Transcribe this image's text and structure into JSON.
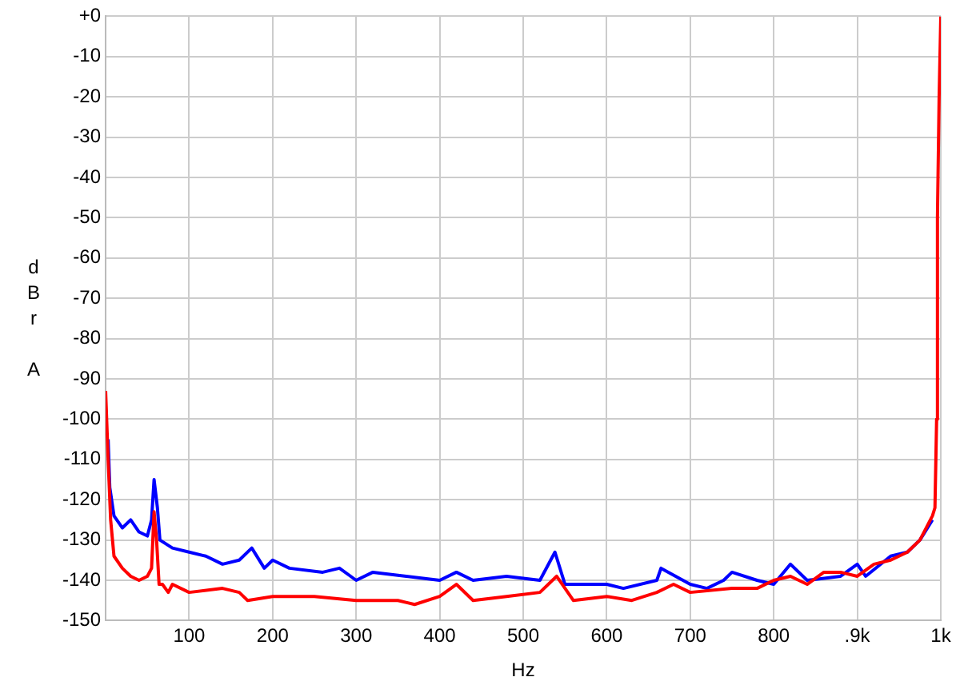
{
  "chart_data": {
    "type": "line",
    "xlabel": "Hz",
    "ylabel": "dBr A",
    "xlim": [
      0,
      1000
    ],
    "xticks": [
      100,
      200,
      300,
      400,
      500,
      600,
      700,
      800,
      {
        "value": 900,
        "label": ".9k"
      },
      {
        "value": 1000,
        "label": "1k"
      }
    ],
    "ylim": [
      -150,
      0
    ],
    "yticks": [
      {
        "value": 0,
        "label": "+0"
      },
      -10,
      -20,
      -30,
      -40,
      -50,
      -60,
      -70,
      -80,
      -90,
      -100,
      -110,
      -120,
      -130,
      -140,
      -150
    ],
    "grid": true,
    "legend": false,
    "marker": "none",
    "line_style": "solid",
    "series": [
      {
        "color": "#0000ff",
        "x": [
          3,
          5,
          10,
          20,
          30,
          40,
          50,
          55,
          58,
          62,
          65,
          80,
          100,
          120,
          140,
          160,
          175,
          190,
          200,
          220,
          260,
          280,
          300,
          320,
          360,
          400,
          420,
          440,
          480,
          520,
          538,
          550,
          600,
          620,
          660,
          665,
          700,
          720,
          740,
          750,
          780,
          800,
          820,
          840,
          880,
          900,
          910,
          940,
          960,
          975,
          990
        ],
        "values": [
          -105,
          -117,
          -124,
          -127,
          -125,
          -128,
          -129,
          -125,
          -115,
          -122,
          -130,
          -132,
          -133,
          -134,
          -136,
          -135,
          -132,
          -137,
          -135,
          -137,
          -138,
          -137,
          -140,
          -138,
          -139,
          -140,
          -138,
          -140,
          -139,
          -140,
          -133,
          -141,
          -141,
          -142,
          -140,
          -137,
          -141,
          -142,
          -140,
          -138,
          -140,
          -141,
          -136,
          -140,
          -139,
          -136,
          -139,
          -134,
          -133,
          -130,
          -125
        ]
      },
      {
        "color": "#ff0000",
        "x": [
          0,
          3,
          6,
          10,
          20,
          30,
          40,
          50,
          55,
          58,
          61,
          64,
          68,
          75,
          80,
          100,
          140,
          160,
          170,
          200,
          250,
          300,
          350,
          370,
          400,
          420,
          440,
          480,
          520,
          540,
          560,
          600,
          630,
          660,
          680,
          700,
          750,
          780,
          800,
          820,
          840,
          860,
          880,
          900,
          920,
          940,
          960,
          975,
          990,
          993,
          995,
          996,
          998,
          1000
        ],
        "values": [
          -93,
          -110,
          -125,
          -134,
          -137,
          -139,
          -140,
          -139,
          -137,
          -123,
          -130,
          -141,
          -141,
          -143,
          -141,
          -143,
          -142,
          -143,
          -145,
          -144,
          -144,
          -145,
          -145,
          -146,
          -144,
          -141,
          -145,
          -144,
          -143,
          -139,
          -145,
          -144,
          -145,
          -143,
          -141,
          -143,
          -142,
          -142,
          -140,
          -139,
          -141,
          -138,
          -138,
          -139,
          -136,
          -135,
          -133,
          -130,
          -124,
          -122,
          -100,
          -50,
          -20,
          0
        ]
      }
    ]
  }
}
